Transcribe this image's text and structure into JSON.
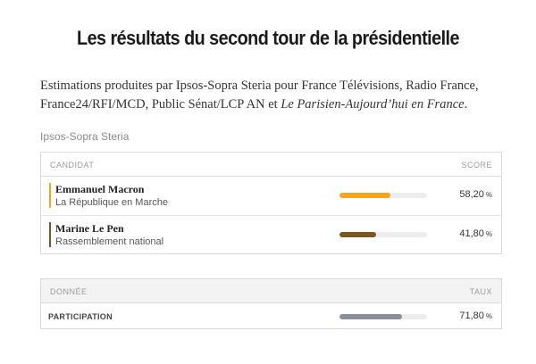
{
  "title": "Les résultats du second tour de la présidentielle",
  "intro": {
    "text1": "Estimations produites par Ipsos-Sopra Steria pour France Télévisions, Radio France, France24/RFI/MCD, Public Sénat/LCP AN et ",
    "text_italic": "Le Parisien-Aujourd’hui en France",
    "text_end": "."
  },
  "source": "Ipsos-Sopra Steria",
  "results_table": {
    "col_left": "CANDIDAT",
    "col_right": "SCORE",
    "rows": [
      {
        "name": "Emmanuel Macron",
        "party": "La République en Marche",
        "score": "58,20",
        "unit": "%",
        "percent": 58.2,
        "color": "#f4a623"
      },
      {
        "name": "Marine Le Pen",
        "party": "Rassemblement national",
        "score": "41,80",
        "unit": "%",
        "percent": 41.8,
        "color": "#7a5626"
      }
    ]
  },
  "turnout_table": {
    "col_left": "DONNÉE",
    "col_right": "TAUX",
    "rows": [
      {
        "label": "PARTICIPATION",
        "score": "71,80",
        "unit": "%",
        "percent": 71.8,
        "color": "#8a9099"
      }
    ]
  }
}
